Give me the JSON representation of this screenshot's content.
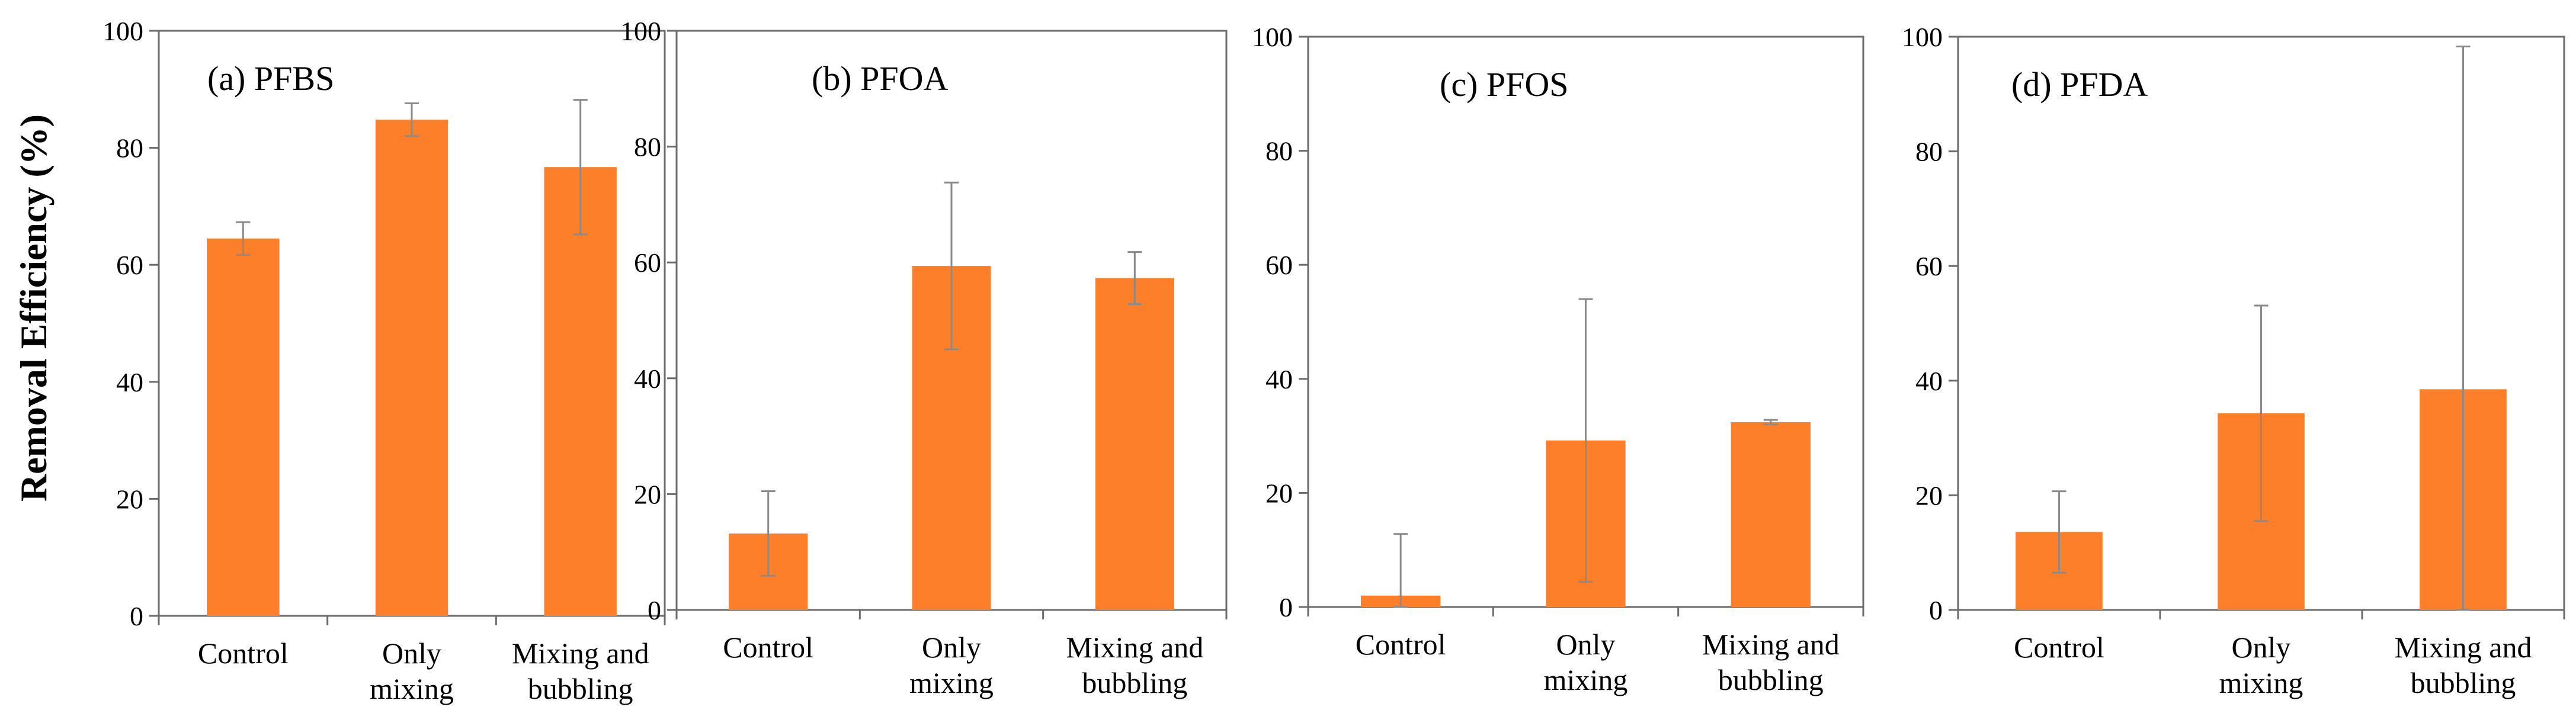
{
  "figure": {
    "ylabel": "Removal Efficiency (%)",
    "bar_color": "#fe7f2a",
    "error_color": "#8a8a8a",
    "axis_color": "#6b6b6b"
  },
  "chart_data": [
    {
      "type": "bar",
      "title": "(a) PFBS",
      "categories": [
        [
          "Control"
        ],
        [
          "Only",
          "mixing"
        ],
        [
          "Mixing and",
          "bubbling"
        ]
      ],
      "values": [
        64.5,
        84.8,
        76.7
      ],
      "errors": [
        2.8,
        2.8,
        11.5
      ],
      "ylim": [
        0,
        100
      ],
      "yticks": [
        "0",
        "20",
        "40",
        "60",
        "80",
        "100"
      ],
      "ylabel": "Removal Efficiency (%)",
      "xlabel": ""
    },
    {
      "type": "bar",
      "title": "(b) PFOA",
      "categories": [
        [
          "Control"
        ],
        [
          "Only",
          "mixing"
        ],
        [
          "Mixing and",
          "bubbling"
        ]
      ],
      "values": [
        13.2,
        59.4,
        57.3
      ],
      "errors": [
        7.3,
        14.4,
        4.5
      ],
      "ylim": [
        0,
        100
      ],
      "yticks": [
        "0",
        "20",
        "40",
        "60",
        "80",
        "100"
      ],
      "ylabel": "",
      "xlabel": ""
    },
    {
      "type": "bar",
      "title": "(c) PFOS",
      "categories": [
        [
          "Control"
        ],
        [
          "Only",
          "mixing"
        ],
        [
          "Mixing and",
          "bubbling"
        ]
      ],
      "values": [
        2.0,
        29.2,
        32.4
      ],
      "errors": [
        10.8,
        24.8,
        0.4
      ],
      "ylim": [
        0,
        100
      ],
      "yticks": [
        "0",
        "20",
        "40",
        "60",
        "80",
        "100"
      ],
      "ylabel": "",
      "xlabel": ""
    },
    {
      "type": "bar",
      "title": "(d) PFDA",
      "categories": [
        [
          "Control"
        ],
        [
          "Only",
          "mixing"
        ],
        [
          "Mixing and",
          "bubbling"
        ]
      ],
      "values": [
        13.6,
        34.3,
        38.5
      ],
      "errors": [
        7.1,
        18.8,
        59.8
      ],
      "ylim": [
        0,
        100
      ],
      "yticks": [
        "0",
        "20",
        "40",
        "60",
        "80",
        "100"
      ],
      "ylabel": "",
      "xlabel": ""
    }
  ]
}
